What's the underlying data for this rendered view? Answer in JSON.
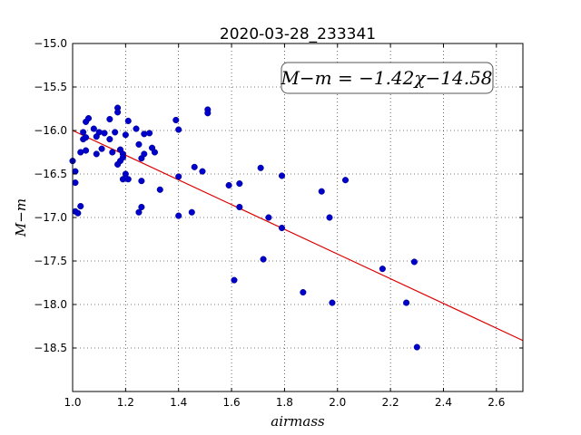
{
  "chart_data": {
    "type": "scatter",
    "title": "2020-03-28_233341",
    "xlabel": "airmass",
    "ylabel": "M−m",
    "xlim": [
      1.0,
      2.7
    ],
    "ylim": [
      -19.0,
      -15.0
    ],
    "xticks": [
      1.0,
      1.2,
      1.4,
      1.6,
      1.8,
      2.0,
      2.2,
      2.4,
      2.6
    ],
    "yticks": [
      -15.0,
      -15.5,
      -16.0,
      -16.5,
      -17.0,
      -17.5,
      -18.0,
      -18.5
    ],
    "xtick_labels": [
      "1.0",
      "1.2",
      "1.4",
      "1.6",
      "1.8",
      "2.0",
      "2.2",
      "2.4",
      "2.6"
    ],
    "ytick_labels": [
      "−15.0",
      "−15.5",
      "−16.0",
      "−16.5",
      "−17.0",
      "−17.5",
      "−18.0",
      "−18.5"
    ],
    "grid": true,
    "annotation": "M−m = −1.42χ−14.58",
    "fit": {
      "slope": -1.42,
      "intercept": -14.58,
      "color": "#dd0000"
    },
    "point_color": "#0000cc",
    "points": [
      [
        1.0,
        -16.35
      ],
      [
        1.01,
        -16.47
      ],
      [
        1.01,
        -16.6
      ],
      [
        1.01,
        -16.93
      ],
      [
        1.02,
        -16.95
      ],
      [
        1.03,
        -16.87
      ],
      [
        1.03,
        -16.25
      ],
      [
        1.04,
        -16.1
      ],
      [
        1.04,
        -16.02
      ],
      [
        1.05,
        -16.23
      ],
      [
        1.05,
        -16.08
      ],
      [
        1.05,
        -15.9
      ],
      [
        1.06,
        -15.86
      ],
      [
        1.08,
        -15.98
      ],
      [
        1.09,
        -16.07
      ],
      [
        1.09,
        -16.27
      ],
      [
        1.1,
        -16.02
      ],
      [
        1.11,
        -16.21
      ],
      [
        1.12,
        -16.03
      ],
      [
        1.14,
        -16.1
      ],
      [
        1.14,
        -15.87
      ],
      [
        1.15,
        -16.25
      ],
      [
        1.16,
        -16.02
      ],
      [
        1.17,
        -15.74
      ],
      [
        1.17,
        -15.79
      ],
      [
        1.17,
        -16.39
      ],
      [
        1.18,
        -16.35
      ],
      [
        1.18,
        -16.22
      ],
      [
        1.19,
        -16.27
      ],
      [
        1.19,
        -16.31
      ],
      [
        1.19,
        -16.56
      ],
      [
        1.2,
        -16.5
      ],
      [
        1.2,
        -16.05
      ],
      [
        1.21,
        -15.89
      ],
      [
        1.21,
        -16.56
      ],
      [
        1.24,
        -15.98
      ],
      [
        1.25,
        -16.16
      ],
      [
        1.25,
        -16.94
      ],
      [
        1.26,
        -16.88
      ],
      [
        1.26,
        -16.58
      ],
      [
        1.26,
        -16.32
      ],
      [
        1.27,
        -16.27
      ],
      [
        1.27,
        -16.04
      ],
      [
        1.29,
        -16.03
      ],
      [
        1.3,
        -16.2
      ],
      [
        1.31,
        -16.25
      ],
      [
        1.33,
        -16.68
      ],
      [
        1.39,
        -15.88
      ],
      [
        1.4,
        -15.99
      ],
      [
        1.4,
        -16.98
      ],
      [
        1.4,
        -16.53
      ],
      [
        1.45,
        -16.94
      ],
      [
        1.46,
        -16.42
      ],
      [
        1.49,
        -16.47
      ],
      [
        1.51,
        -15.76
      ],
      [
        1.51,
        -15.8
      ],
      [
        1.59,
        -16.63
      ],
      [
        1.61,
        -17.72
      ],
      [
        1.63,
        -16.88
      ],
      [
        1.63,
        -16.61
      ],
      [
        1.71,
        -16.43
      ],
      [
        1.72,
        -17.48
      ],
      [
        1.74,
        -17.0
      ],
      [
        1.79,
        -16.52
      ],
      [
        1.79,
        -17.12
      ],
      [
        1.87,
        -17.86
      ],
      [
        1.94,
        -16.7
      ],
      [
        1.97,
        -17.0
      ],
      [
        1.98,
        -17.98
      ],
      [
        2.03,
        -16.57
      ],
      [
        2.17,
        -17.59
      ],
      [
        2.26,
        -17.98
      ],
      [
        2.29,
        -17.51
      ],
      [
        2.3,
        -18.49
      ]
    ]
  }
}
